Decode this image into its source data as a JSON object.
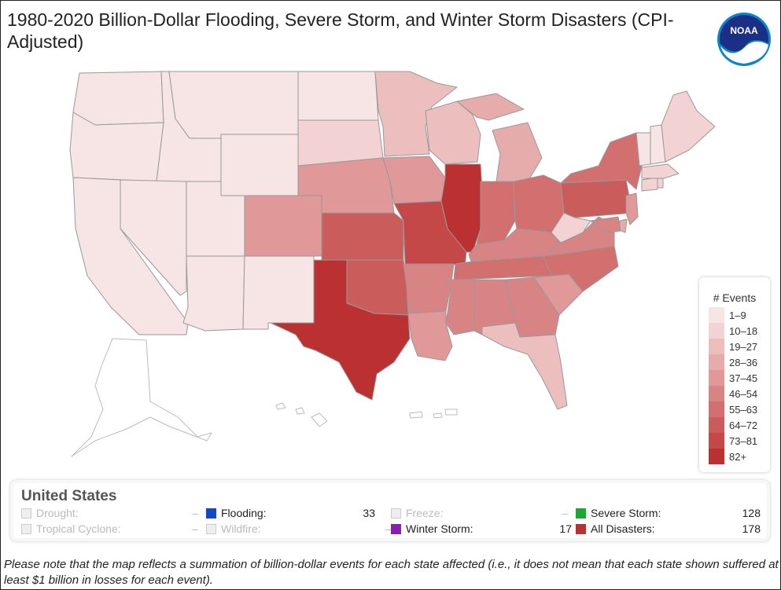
{
  "title": "1980-2020 Billion-Dollar Flooding, Severe Storm, and Winter Storm Disasters (CPI-Adjusted)",
  "logo_text": "NOAA",
  "legend": {
    "title": "# Events",
    "bins": [
      {
        "label": "1–9",
        "color": "#f7e4e4"
      },
      {
        "label": "10–18",
        "color": "#f2d2d2"
      },
      {
        "label": "19–27",
        "color": "#ecbebe"
      },
      {
        "label": "28–36",
        "color": "#e6abab"
      },
      {
        "label": "37–45",
        "color": "#e09898"
      },
      {
        "label": "46–54",
        "color": "#d98484"
      },
      {
        "label": "55–63",
        "color": "#d27070"
      },
      {
        "label": "64–72",
        "color": "#cb5c5c"
      },
      {
        "label": "73–81",
        "color": "#c44848"
      },
      {
        "label": "82+",
        "color": "#bb3030"
      }
    ]
  },
  "summary": {
    "region": "United States",
    "items": [
      {
        "label": "Drought:",
        "value": "–",
        "color": "",
        "enabled": false
      },
      {
        "label": "Flooding:",
        "value": "33",
        "color": "#1447c8",
        "enabled": true
      },
      {
        "label": "Freeze:",
        "value": "–",
        "color": "",
        "enabled": false
      },
      {
        "label": "Severe Storm:",
        "value": "128",
        "color": "#1aa832",
        "enabled": true
      },
      {
        "label": "Tropical Cyclone:",
        "value": "–",
        "color": "",
        "enabled": false
      },
      {
        "label": "Wildfire:",
        "value": "–",
        "color": "",
        "enabled": false
      },
      {
        "label": "Winter Storm:",
        "value": "17",
        "color": "#8c1cb4",
        "enabled": true
      },
      {
        "label": "All Disasters:",
        "value": "178",
        "color": "#b83232",
        "enabled": true
      }
    ]
  },
  "note": "Please note that the map reflects a summation of billion-dollar events for each state affected (i.e., it does not mean that each state shown suffered at least $1 billion in losses for each event)."
}
